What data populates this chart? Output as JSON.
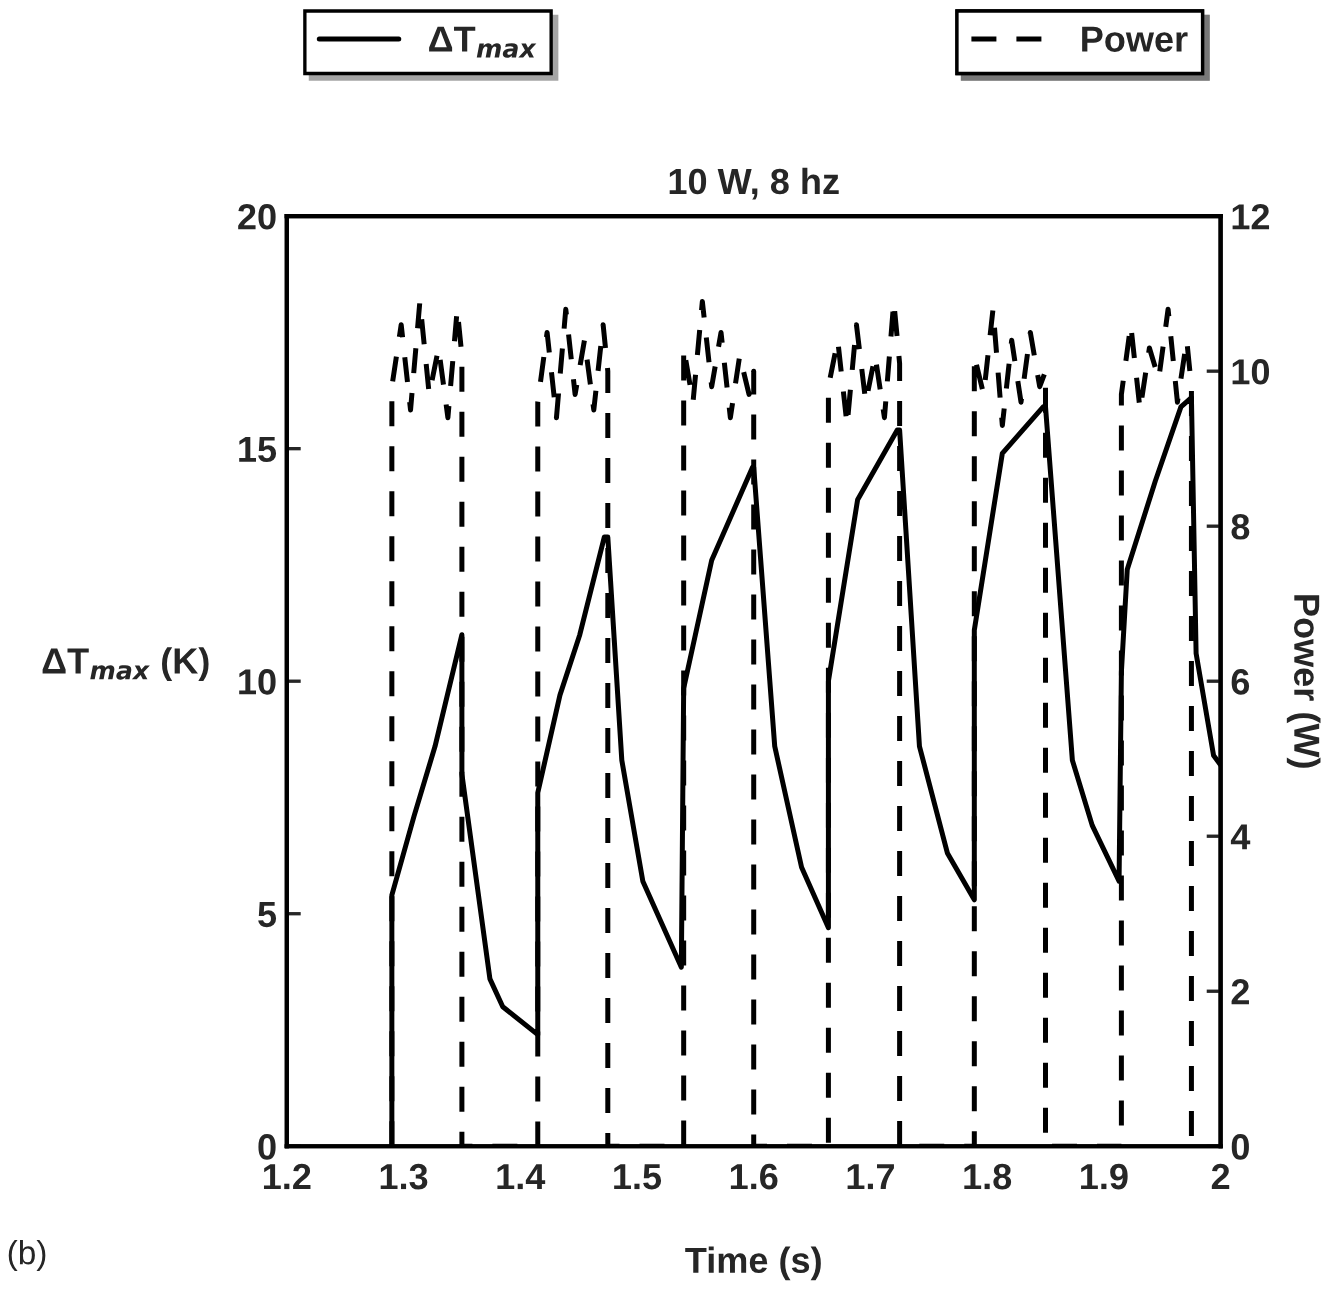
{
  "chart_data": {
    "type": "line",
    "title": "10 W, 8 hz",
    "xlabel": "Time (s)",
    "ylabel": "ΔT$_{max}$ (K)",
    "y2label": "Power (W)",
    "annotations": [
      "(b)"
    ],
    "xlim": [
      1.2,
      2
    ],
    "xticks": [
      {
        "value": 1.2,
        "label": "1.2"
      },
      {
        "value": 1.3,
        "label": "1.3"
      },
      {
        "value": 1.4,
        "label": "1.4"
      },
      {
        "value": 1.5,
        "label": "1.5"
      },
      {
        "value": 1.6,
        "label": "1.6"
      },
      {
        "value": 1.7,
        "label": "1.7"
      },
      {
        "value": 1.8,
        "label": "1.8"
      },
      {
        "value": 1.9,
        "label": "1.9"
      },
      {
        "value": 2,
        "label": "2"
      }
    ],
    "ylim": [
      0,
      20
    ],
    "yticks": [
      0,
      5,
      10,
      15,
      20
    ],
    "y2lim": [
      0,
      12
    ],
    "y2ticks": [
      0,
      2,
      4,
      6,
      8,
      10,
      12
    ],
    "grid": false,
    "legend": "top",
    "marker": "none",
    "series": [
      {
        "name": "ΔT$_{max}$",
        "color": "#000000",
        "line_style": "solid",
        "x": [
          1.29,
          1.29,
          1.309,
          1.327,
          1.35,
          1.35,
          1.374,
          1.385,
          1.415,
          1.415,
          1.434,
          1.451,
          1.472,
          1.475,
          1.487,
          1.505,
          1.538,
          1.54,
          1.564,
          1.599,
          1.6,
          1.618,
          1.641,
          1.664,
          1.664,
          1.689,
          1.723,
          1.725,
          1.742,
          1.766,
          1.789,
          1.789,
          1.813,
          1.848,
          1.85,
          1.873,
          1.89,
          1.913,
          1.915,
          1.92,
          1.944,
          1.966,
          1.975,
          1.979,
          1.994,
          2.0
        ],
        "values": [
          0,
          5.4,
          7.1,
          8.6,
          11.0,
          8.0,
          3.6,
          3.0,
          2.4,
          7.6,
          9.7,
          11.0,
          13.1,
          13.1,
          8.3,
          5.7,
          3.85,
          9.85,
          12.6,
          14.6,
          14.6,
          8.6,
          6.0,
          4.7,
          10.0,
          13.9,
          15.4,
          15.4,
          8.6,
          6.3,
          5.3,
          11.1,
          14.9,
          15.9,
          15.9,
          8.3,
          6.9,
          5.7,
          10.2,
          12.4,
          14.3,
          15.9,
          16.1,
          10.6,
          8.4,
          8.2
        ]
      },
      {
        "name": "Power",
        "color": "#000000",
        "line_style": "dashed",
        "axis": "y2",
        "x": [
          1.29,
          1.29,
          1.298,
          1.306,
          1.314,
          1.322,
          1.33,
          1.338,
          1.346,
          1.35,
          1.35,
          1.415,
          1.415,
          1.423,
          1.431,
          1.439,
          1.447,
          1.455,
          1.463,
          1.471,
          1.475,
          1.475,
          1.54,
          1.54,
          1.548,
          1.556,
          1.564,
          1.572,
          1.58,
          1.588,
          1.596,
          1.6,
          1.6,
          1.664,
          1.664,
          1.672,
          1.68,
          1.688,
          1.696,
          1.704,
          1.712,
          1.72,
          1.725,
          1.725,
          1.789,
          1.789,
          1.797,
          1.805,
          1.813,
          1.821,
          1.829,
          1.837,
          1.845,
          1.85,
          1.85,
          1.915,
          1.915,
          1.923,
          1.931,
          1.939,
          1.947,
          1.955,
          1.963,
          1.971,
          1.975,
          1.975
        ],
        "values": [
          0,
          9.8,
          10.6,
          9.5,
          10.9,
          9.7,
          10.3,
          9.4,
          10.8,
          10.2,
          0,
          0,
          9.6,
          10.5,
          9.4,
          10.8,
          9.7,
          10.4,
          9.5,
          10.6,
          10.0,
          0,
          0,
          10.3,
          9.6,
          10.9,
          9.8,
          10.5,
          9.4,
          10.2,
          9.7,
          10.0,
          0,
          0,
          9.8,
          10.4,
          9.3,
          10.6,
          9.6,
          10.2,
          9.4,
          10.9,
          10.1,
          0,
          0,
          10.2,
          9.7,
          10.8,
          9.3,
          10.4,
          9.6,
          10.5,
          9.8,
          10.0,
          0,
          0,
          9.7,
          10.6,
          9.5,
          10.3,
          9.9,
          10.8,
          9.6,
          10.4,
          9.8,
          0
        ]
      }
    ]
  }
}
